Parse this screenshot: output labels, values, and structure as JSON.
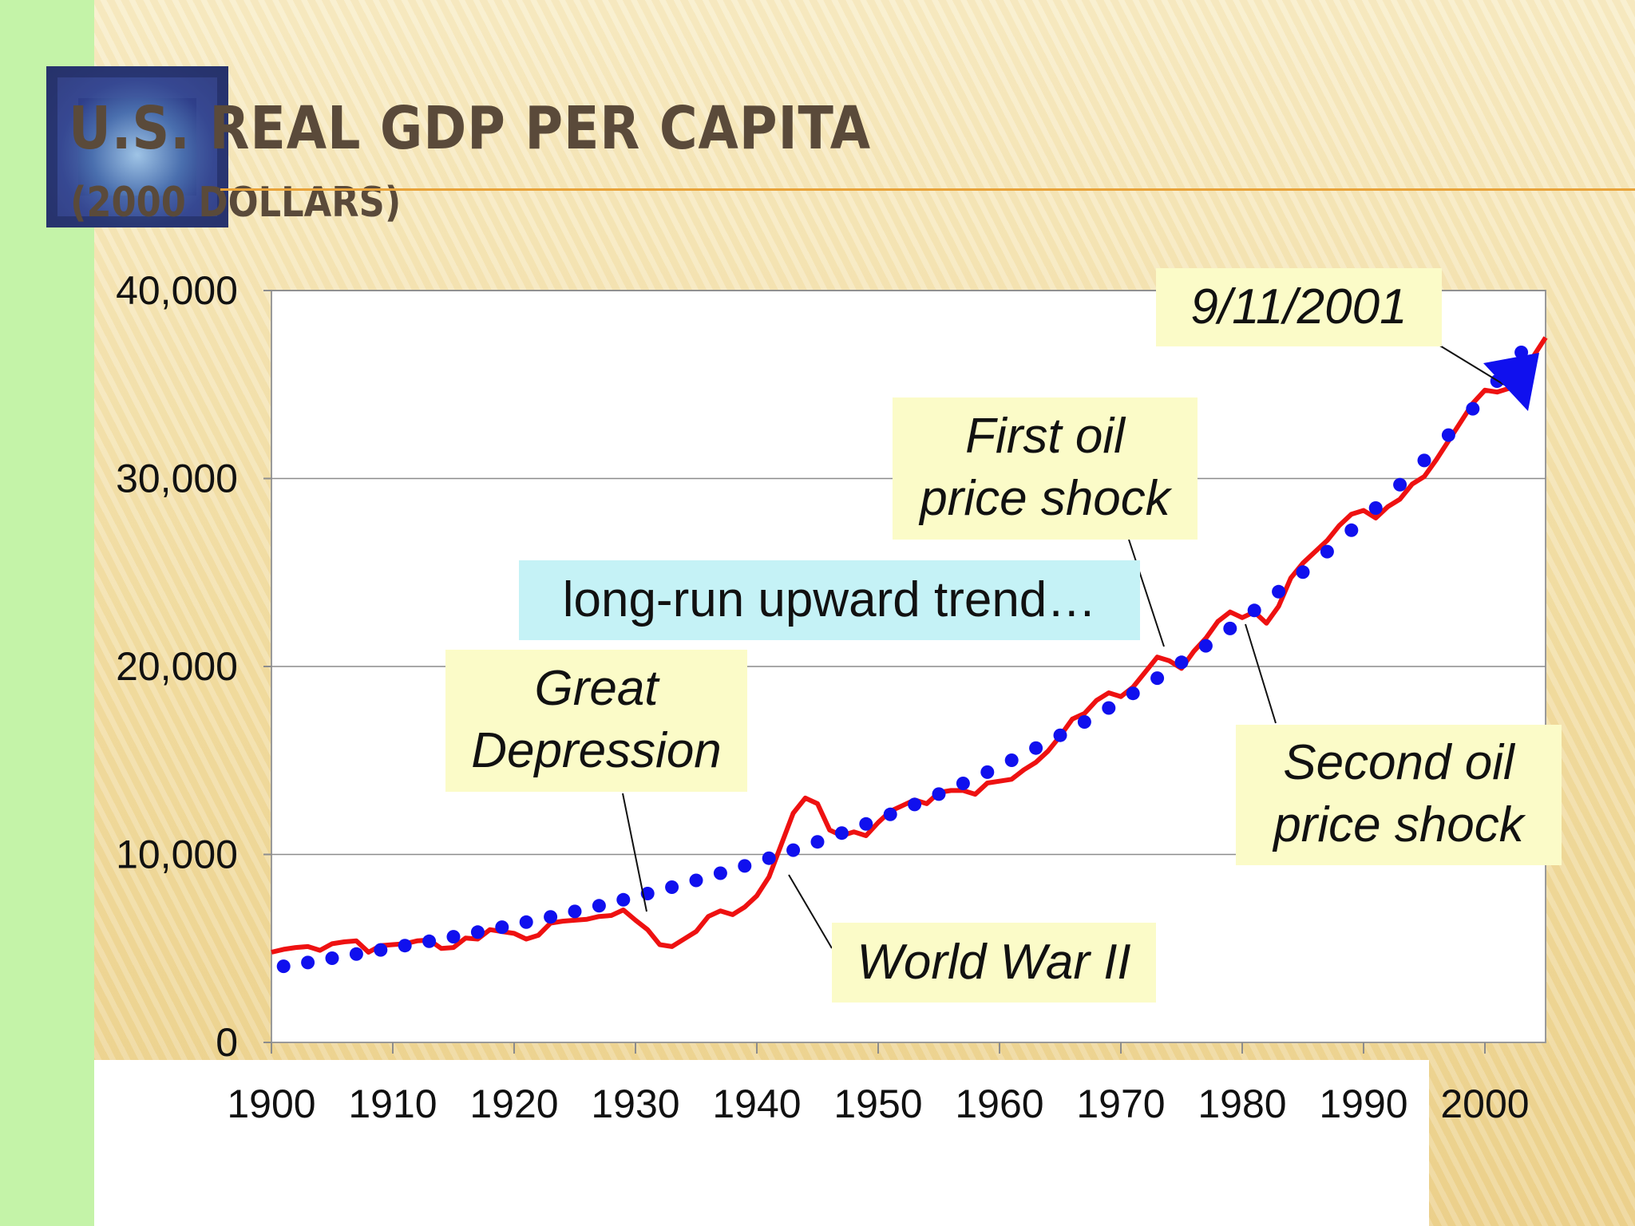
{
  "slide": {
    "title": "U.S. REAL GDP PER CAPITA",
    "subtitle": "(2000 DOLLARS)"
  },
  "colors": {
    "actual_line": "#ee1111",
    "trend_dots": "#1010ee",
    "callout_bg": "#fbfbc8",
    "trend_callout_bg": "#c5f2f6",
    "title_text": "#5a4a3a",
    "rule": "#e8a33a"
  },
  "callouts": {
    "sept11": "9/11/2001",
    "first_oil": [
      "First oil",
      "price shock"
    ],
    "trend": "long-run upward trend…",
    "great_depression": [
      "Great",
      "Depression"
    ],
    "second_oil": [
      "Second oil",
      "price shock"
    ],
    "wwii": "World War II"
  },
  "chart_data": {
    "type": "line",
    "title": "U.S. REAL GDP PER CAPITA (2000 DOLLARS)",
    "xlabel": "",
    "ylabel": "",
    "xlim": [
      1900,
      2005
    ],
    "ylim": [
      0,
      40000
    ],
    "x_ticks": [
      1900,
      1910,
      1920,
      1930,
      1940,
      1950,
      1960,
      1970,
      1980,
      1990,
      2000
    ],
    "x_tick_labels": [
      "1900",
      "1910",
      "1920",
      "1930",
      "1940",
      "1950",
      "1960",
      "1970",
      "1980",
      "1990",
      "2000"
    ],
    "y_ticks": [
      0,
      10000,
      20000,
      30000,
      40000
    ],
    "y_tick_labels": [
      "0",
      "10,000",
      "20,000",
      "30,000",
      "40,000"
    ],
    "grid": "horizontal",
    "series": [
      {
        "style": "solid-red-line",
        "x": [
          1900,
          1901,
          1902,
          1903,
          1904,
          1905,
          1906,
          1907,
          1908,
          1909,
          1910,
          1911,
          1912,
          1913,
          1914,
          1915,
          1916,
          1917,
          1918,
          1919,
          1920,
          1921,
          1922,
          1923,
          1924,
          1925,
          1926,
          1927,
          1928,
          1929,
          1930,
          1931,
          1932,
          1933,
          1934,
          1935,
          1936,
          1937,
          1938,
          1939,
          1940,
          1941,
          1942,
          1943,
          1944,
          1945,
          1946,
          1947,
          1948,
          1949,
          1950,
          1951,
          1952,
          1953,
          1954,
          1955,
          1956,
          1957,
          1958,
          1959,
          1960,
          1961,
          1962,
          1963,
          1964,
          1965,
          1966,
          1967,
          1968,
          1969,
          1970,
          1971,
          1972,
          1973,
          1974,
          1975,
          1976,
          1977,
          1978,
          1979,
          1980,
          1981,
          1982,
          1983,
          1984,
          1985,
          1986,
          1987,
          1988,
          1989,
          1990,
          1991,
          1992,
          1993,
          1994,
          1995,
          1996,
          1997,
          1998,
          1999,
          2000,
          2001,
          2002,
          2003,
          2004,
          2005
        ],
        "values": [
          4800,
          4950,
          5050,
          5100,
          4900,
          5250,
          5350,
          5400,
          4800,
          5150,
          5200,
          5250,
          5400,
          5450,
          5000,
          5050,
          5550,
          5500,
          6000,
          5900,
          5800,
          5500,
          5700,
          6350,
          6450,
          6500,
          6550,
          6700,
          6750,
          7050,
          6500,
          6000,
          5200,
          5100,
          5500,
          5900,
          6700,
          7000,
          6800,
          7200,
          7800,
          8800,
          10500,
          12200,
          13000,
          12700,
          11300,
          11000,
          11200,
          11000,
          11700,
          12300,
          12600,
          12900,
          12700,
          13300,
          13400,
          13400,
          13200,
          13800,
          13900,
          14000,
          14500,
          14900,
          15500,
          16300,
          17200,
          17500,
          18200,
          18600,
          18400,
          18900,
          19700,
          20500,
          20300,
          19900,
          20800,
          21500,
          22400,
          22900,
          22600,
          22900,
          22300,
          23200,
          24700,
          25500,
          26100,
          26700,
          27500,
          28100,
          28300,
          27900,
          28500,
          28900,
          29700,
          30100,
          31000,
          32000,
          33000,
          34000,
          34700,
          34600,
          34800,
          35400,
          36500,
          37500
        ]
      },
      {
        "style": "dotted-blue-trend",
        "x": [
          1901,
          1903,
          1905,
          1907,
          1909,
          1911,
          1913,
          1915,
          1917,
          1919,
          1921,
          1923,
          1925,
          1927,
          1929,
          1931,
          1933,
          1935,
          1937,
          1939,
          1941,
          1943,
          1945,
          1947,
          1949,
          1951,
          1953,
          1955,
          1957,
          1959,
          1961,
          1963,
          1965,
          1967,
          1969,
          1971,
          1973,
          1975,
          1977,
          1979,
          1981,
          1983,
          1985,
          1987,
          1989,
          1991,
          1993,
          1995,
          1997,
          1999,
          2001,
          2003
        ],
        "values": [
          4050,
          4250,
          4480,
          4700,
          4920,
          5150,
          5380,
          5620,
          5870,
          6130,
          6400,
          6680,
          6970,
          7270,
          7590,
          7920,
          8260,
          8620,
          9000,
          9390,
          9800,
          10230,
          10670,
          11140,
          11620,
          12130,
          12660,
          13210,
          13780,
          14380,
          15010,
          15660,
          16340,
          17050,
          17790,
          18570,
          19380,
          20220,
          21100,
          22020,
          22980,
          23980,
          25020,
          26110,
          27250,
          28430,
          29670,
          30960,
          32310,
          33710,
          35180,
          36710
        ]
      }
    ]
  }
}
